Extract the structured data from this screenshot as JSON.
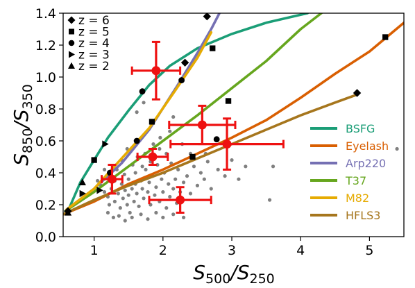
{
  "chart_data": {
    "type": "scatter",
    "xlabel_main": "S",
    "xlabel_sub_num": "500",
    "xlabel_sep": "/S",
    "xlabel_sub_den": "250",
    "ylabel_main": "S",
    "ylabel_sub_num": "850",
    "ylabel_sep": "/S",
    "ylabel_sub_den": "350",
    "xlim": [
      0.55,
      5.5
    ],
    "ylim": [
      0.0,
      1.4
    ],
    "xticks": [
      "1",
      "2",
      "3",
      "4",
      "5"
    ],
    "yticks": [
      "0.0",
      "0.2",
      "0.4",
      "0.6",
      "0.8",
      "1.0",
      "1.2",
      "1.4"
    ],
    "marker_legend": {
      "position": "top-left",
      "entries": [
        {
          "label": "z = 6",
          "marker": "diamond"
        },
        {
          "label": "z = 5",
          "marker": "square"
        },
        {
          "label": "z = 4",
          "marker": "circle"
        },
        {
          "label": "z = 3",
          "marker": "triangle-right"
        },
        {
          "label": "z = 2",
          "marker": "triangle-up"
        }
      ]
    },
    "series": [
      {
        "name": "BSFG",
        "color": "#1b9e77",
        "x": [
          0.62,
          0.8,
          1.0,
          1.2,
          1.5,
          1.8,
          2.1,
          2.5,
          3.0,
          3.5,
          4.0,
          4.1
        ],
        "y": [
          0.16,
          0.34,
          0.48,
          0.62,
          0.79,
          0.95,
          1.07,
          1.18,
          1.27,
          1.34,
          1.39,
          1.4
        ],
        "markers": [
          {
            "x": 0.62,
            "y": 0.16,
            "marker": "diamond"
          },
          {
            "x": 0.83,
            "y": 0.34,
            "marker": "triangle-up"
          },
          {
            "x": 1.0,
            "y": 0.48,
            "marker": "square"
          },
          {
            "x": 1.16,
            "y": 0.58,
            "marker": "triangle-right"
          },
          {
            "x": 1.7,
            "y": 0.91,
            "marker": "circle"
          },
          {
            "x": 2.72,
            "y": 1.18,
            "marker": "square"
          }
        ]
      },
      {
        "name": "Eyelash",
        "color": "#d95f02",
        "x": [
          0.55,
          1.0,
          1.5,
          2.0,
          2.5,
          3.0,
          3.5,
          4.0,
          4.5,
          5.0,
          5.5
        ],
        "y": [
          0.14,
          0.22,
          0.33,
          0.42,
          0.52,
          0.62,
          0.73,
          0.87,
          1.02,
          1.16,
          1.34
        ],
        "markers": [
          {
            "x": 2.43,
            "y": 0.5,
            "marker": "square"
          },
          {
            "x": 5.23,
            "y": 1.25,
            "marker": "square"
          }
        ]
      },
      {
        "name": "Arp220",
        "color": "#7570b3",
        "x": [
          0.6,
          1.0,
          1.4,
          1.8,
          2.2,
          2.5,
          2.7,
          2.82
        ],
        "y": [
          0.17,
          0.3,
          0.46,
          0.67,
          0.94,
          1.15,
          1.3,
          1.4
        ],
        "markers": [
          {
            "x": 1.23,
            "y": 0.4,
            "marker": "circle"
          },
          {
            "x": 2.27,
            "y": 0.98,
            "marker": "circle"
          },
          {
            "x": 2.32,
            "y": 1.09,
            "marker": "diamond"
          }
        ]
      },
      {
        "name": "T37",
        "color": "#66a61e",
        "x": [
          0.58,
          1.0,
          1.5,
          2.0,
          2.5,
          3.0,
          3.5,
          4.0,
          4.3
        ],
        "y": [
          0.16,
          0.28,
          0.44,
          0.6,
          0.76,
          0.93,
          1.1,
          1.3,
          1.4
        ],
        "markers": [
          {
            "x": 1.08,
            "y": 0.29,
            "marker": "triangle-right"
          },
          {
            "x": 2.95,
            "y": 0.85,
            "marker": "square"
          }
        ]
      },
      {
        "name": "M82",
        "color": "#e6ab02",
        "x": [
          0.6,
          1.0,
          1.4,
          1.8,
          2.2,
          2.5,
          2.7
        ],
        "y": [
          0.17,
          0.3,
          0.49,
          0.68,
          0.93,
          1.12,
          1.28
        ],
        "markers": [
          {
            "x": 1.84,
            "y": 0.72,
            "marker": "square"
          },
          {
            "x": 2.64,
            "y": 1.38,
            "marker": "diamond"
          }
        ]
      },
      {
        "name": "HFLS3",
        "color": "#a6761d",
        "x": [
          0.55,
          1.0,
          1.5,
          2.0,
          2.5,
          3.0,
          3.5,
          4.0,
          4.5,
          4.82
        ],
        "y": [
          0.14,
          0.23,
          0.32,
          0.4,
          0.49,
          0.58,
          0.67,
          0.76,
          0.84,
          0.89
        ],
        "markers": [
          {
            "x": 0.62,
            "y": 0.15,
            "marker": "triangle-up"
          },
          {
            "x": 0.83,
            "y": 0.27,
            "marker": "triangle-right"
          },
          {
            "x": 1.62,
            "y": 0.6,
            "marker": "circle"
          },
          {
            "x": 2.78,
            "y": 0.61,
            "marker": "circle"
          },
          {
            "x": 4.82,
            "y": 0.9,
            "marker": "diamond"
          }
        ]
      }
    ],
    "line_legend_position": "lower-right",
    "measurements": {
      "color": "#ee1111",
      "points": [
        {
          "x": 1.9,
          "y": 1.04,
          "xerr": 0.35,
          "yerr": 0.18
        },
        {
          "x": 2.57,
          "y": 0.7,
          "xerr": 0.48,
          "yerr": 0.12
        },
        {
          "x": 2.93,
          "y": 0.58,
          "xerr": 0.82,
          "yerr": 0.16
        },
        {
          "x": 1.85,
          "y": 0.5,
          "xerr": 0.22,
          "yerr": 0.05
        },
        {
          "x": 1.26,
          "y": 0.36,
          "xerr": 0.15,
          "yerr": 0.09
        },
        {
          "x": 2.25,
          "y": 0.23,
          "xerr": 0.45,
          "yerr": 0.08
        }
      ]
    },
    "background_sample": {
      "color": "#808080",
      "points": [
        [
          1.1,
          0.32
        ],
        [
          1.15,
          0.28
        ],
        [
          1.2,
          0.25
        ],
        [
          1.22,
          0.2
        ],
        [
          1.25,
          0.3
        ],
        [
          1.3,
          0.22
        ],
        [
          1.3,
          0.35
        ],
        [
          1.35,
          0.27
        ],
        [
          1.38,
          0.18
        ],
        [
          1.4,
          0.33
        ],
        [
          1.42,
          0.24
        ],
        [
          1.45,
          0.29
        ],
        [
          1.48,
          0.2
        ],
        [
          1.5,
          0.36
        ],
        [
          1.5,
          0.26
        ],
        [
          1.52,
          0.15
        ],
        [
          1.55,
          0.3
        ],
        [
          1.58,
          0.22
        ],
        [
          1.6,
          0.4
        ],
        [
          1.6,
          0.33
        ],
        [
          1.62,
          0.27
        ],
        [
          1.65,
          0.19
        ],
        [
          1.68,
          0.35
        ],
        [
          1.7,
          0.3
        ],
        [
          1.72,
          0.24
        ],
        [
          1.75,
          0.42
        ],
        [
          1.78,
          0.28
        ],
        [
          1.8,
          0.34
        ],
        [
          1.82,
          0.2
        ],
        [
          1.85,
          0.38
        ],
        [
          1.88,
          0.26
        ],
        [
          1.9,
          0.31
        ],
        [
          1.92,
          0.45
        ],
        [
          1.95,
          0.22
        ],
        [
          1.98,
          0.36
        ],
        [
          2.0,
          0.28
        ],
        [
          2.02,
          0.4
        ],
        [
          2.05,
          0.18
        ],
        [
          2.08,
          0.33
        ],
        [
          2.1,
          0.25
        ],
        [
          2.12,
          0.46
        ],
        [
          2.15,
          0.3
        ],
        [
          2.18,
          0.36
        ],
        [
          2.2,
          0.21
        ],
        [
          2.22,
          0.42
        ],
        [
          2.25,
          0.28
        ],
        [
          2.3,
          0.34
        ],
        [
          2.35,
          0.38
        ],
        [
          2.4,
          0.27
        ],
        [
          2.45,
          0.44
        ],
        [
          2.5,
          0.32
        ],
        [
          2.55,
          0.4
        ],
        [
          2.6,
          0.36
        ],
        [
          2.65,
          0.47
        ],
        [
          2.7,
          0.3
        ],
        [
          2.8,
          0.42
        ],
        [
          2.9,
          0.38
        ],
        [
          3.0,
          0.48
        ],
        [
          3.1,
          0.36
        ],
        [
          3.2,
          0.44
        ],
        [
          3.55,
          0.23
        ],
        [
          3.6,
          0.44
        ],
        [
          5.4,
          0.55
        ],
        [
          1.25,
          0.38
        ],
        [
          1.33,
          0.42
        ],
        [
          1.44,
          0.39
        ],
        [
          1.56,
          0.45
        ],
        [
          1.63,
          0.5
        ],
        [
          1.74,
          0.52
        ],
        [
          1.86,
          0.58
        ],
        [
          1.96,
          0.62
        ],
        [
          2.1,
          0.66
        ],
        [
          2.05,
          0.52
        ],
        [
          1.95,
          0.55
        ],
        [
          1.82,
          0.47
        ],
        [
          1.7,
          0.44
        ],
        [
          1.2,
          0.15
        ],
        [
          1.28,
          0.12
        ],
        [
          1.36,
          0.13
        ],
        [
          1.45,
          0.1
        ],
        [
          1.55,
          0.12
        ],
        [
          1.68,
          0.14
        ],
        [
          1.78,
          0.11
        ],
        [
          1.9,
          0.15
        ],
        [
          2.0,
          0.12
        ],
        [
          2.15,
          0.14
        ],
        [
          2.3,
          0.12
        ],
        [
          1.15,
          0.42
        ],
        [
          1.05,
          0.35
        ],
        [
          1.62,
          0.78
        ],
        [
          1.72,
          0.84
        ],
        [
          2.15,
          0.75
        ],
        [
          2.28,
          0.58
        ],
        [
          2.4,
          0.52
        ],
        [
          2.62,
          0.52
        ],
        [
          1.4,
          0.48
        ],
        [
          1.48,
          0.55
        ]
      ]
    }
  }
}
